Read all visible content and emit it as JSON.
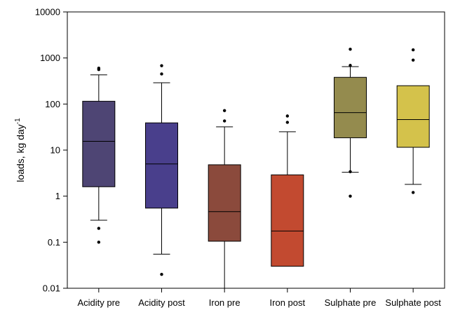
{
  "chart_data": {
    "type": "boxplot",
    "ylabel": "loads, kg day",
    "ylabel_superscript": "-1",
    "yscale": "log",
    "ylim": [
      0.01,
      10000
    ],
    "yticks": [
      "0.01",
      "0.1",
      "1",
      "10",
      "100",
      "1000",
      "10000"
    ],
    "grid": false,
    "categories": [
      "Acidity pre",
      "Acidity post",
      "Iron pre",
      "Iron post",
      "Sulphate pre",
      "Sulphate post"
    ],
    "boxes": [
      {
        "name": "Acidity pre",
        "color": "#4e4574",
        "whisker_low": 0.3,
        "q1": 1.6,
        "median": 15.5,
        "q3": 115,
        "whisker_high": 430,
        "outliers": [
          0.2,
          0.1,
          560,
          600
        ]
      },
      {
        "name": "Acidity post",
        "color": "#493f8c",
        "whisker_low": 0.055,
        "q1": 0.55,
        "median": 5.0,
        "q3": 39,
        "whisker_high": 290,
        "outliers": [
          0.02,
          450,
          680
        ]
      },
      {
        "name": "Iron pre",
        "color": "#8b4a3c",
        "whisker_low": 0.01,
        "q1": 0.105,
        "median": 0.46,
        "q3": 4.8,
        "whisker_high": 32,
        "outliers": [
          43,
          72
        ]
      },
      {
        "name": "Iron post",
        "color": "#c24a30",
        "whisker_low": 0.03,
        "q1": 0.03,
        "median": 0.175,
        "q3": 2.9,
        "whisker_high": 25,
        "outliers": [
          40,
          55
        ]
      },
      {
        "name": "Sulphate pre",
        "color": "#948b4e",
        "whisker_low": 3.3,
        "q1": 18.5,
        "median": 65,
        "q3": 380,
        "whisker_high": 650,
        "outliers": [
          3.4,
          1.0,
          690,
          1550
        ]
      },
      {
        "name": "Sulphate post",
        "color": "#d4c24b",
        "whisker_low": 1.8,
        "q1": 11.5,
        "median": 46,
        "q3": 250,
        "whisker_high": 250,
        "outliers": [
          1.2,
          900,
          1500
        ]
      }
    ]
  }
}
